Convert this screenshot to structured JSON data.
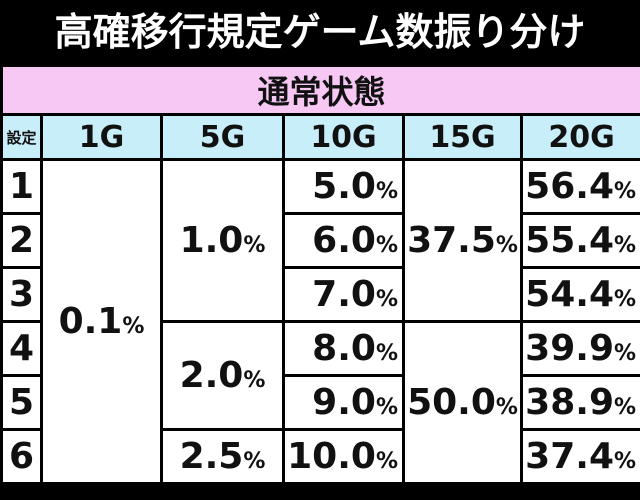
{
  "title": "高確移行規定ゲーム数振り分け",
  "section": "通常状態",
  "table": {
    "header": [
      "設定",
      "1G",
      "5G",
      "10G",
      "15G",
      "20G"
    ],
    "rows": [
      [
        "1",
        {
          "number": "0.1",
          "unit": "%"
        },
        {
          "number": "1.0",
          "unit": "%"
        },
        {
          "number": "5.0",
          "unit": "%"
        },
        {
          "number": "37.5",
          "unit": "%"
        },
        {
          "number": "56.4",
          "unit": "%"
        }
      ],
      [
        "2",
        {
          "number": "6.0",
          "unit": "%"
        },
        {
          "number": "55.4",
          "unit": "%"
        }
      ],
      [
        "3",
        {
          "number": "7.0",
          "unit": "%"
        },
        {
          "number": "54.4",
          "unit": "%"
        }
      ],
      [
        "4",
        {
          "number": "2.0",
          "unit": "%"
        },
        {
          "number": "8.0",
          "unit": "%"
        },
        {
          "number": "50.0",
          "unit": "%"
        },
        {
          "number": "39.9",
          "unit": "%"
        }
      ],
      [
        "5",
        {
          "number": "9.0",
          "unit": "%"
        },
        {
          "number": "38.9",
          "unit": "%"
        }
      ],
      [
        "6",
        {
          "number": "2.5",
          "unit": "%"
        },
        {
          "number": "10.0",
          "unit": "%"
        },
        {
          "number": "37.4",
          "unit": "%"
        }
      ]
    ]
  }
}
